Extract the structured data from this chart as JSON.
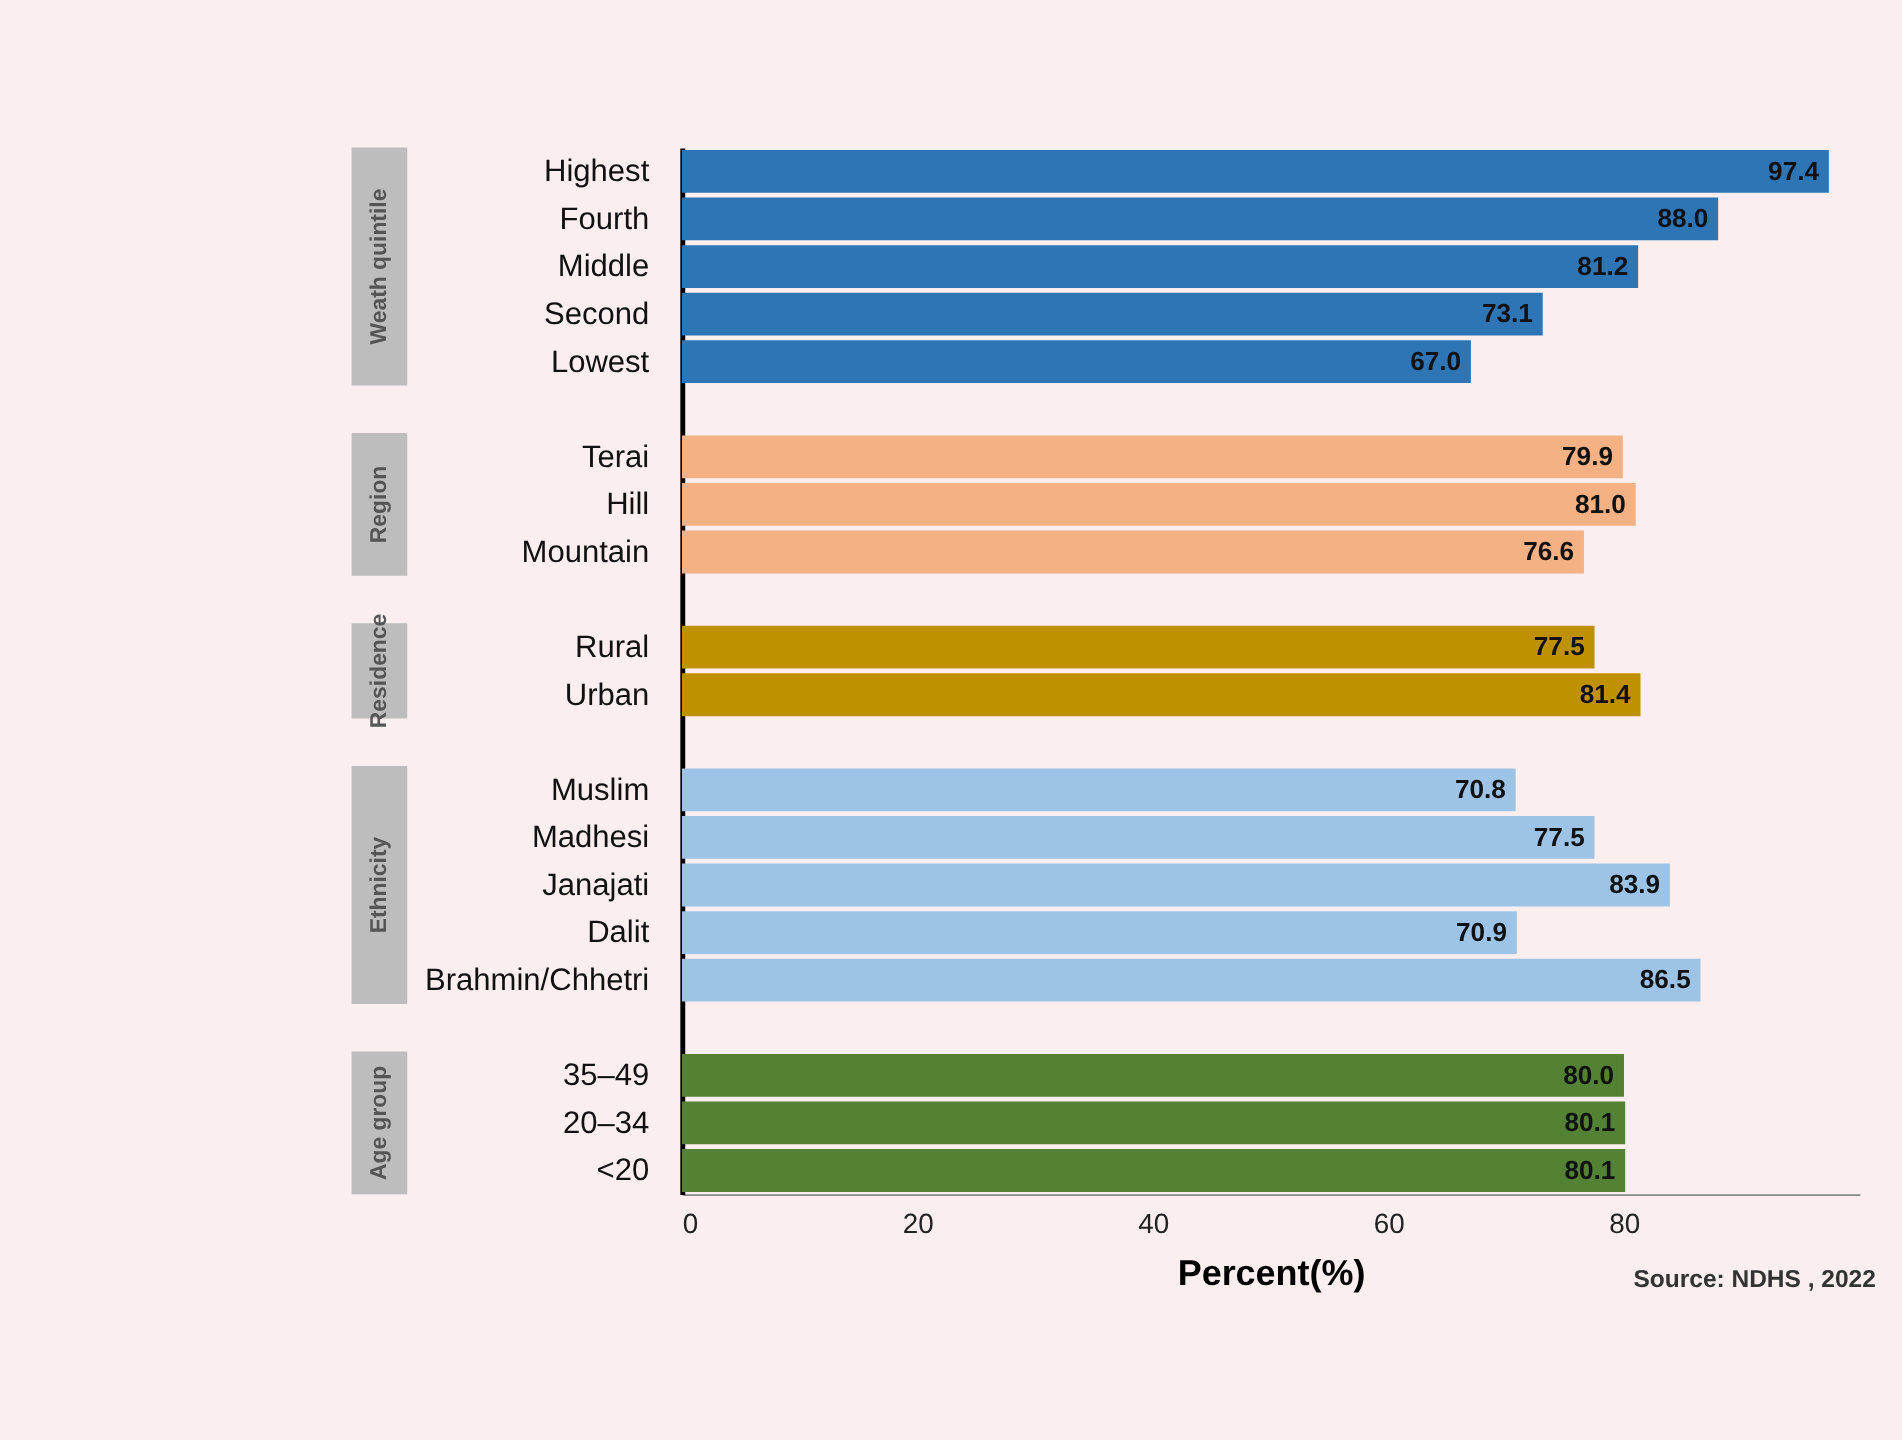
{
  "chart_data": {
    "type": "bar",
    "orientation": "horizontal",
    "xlabel": "Percent(%)",
    "categories": [
      "Highest",
      "Fourth",
      "Middle",
      "Second",
      "Lowest",
      null,
      "Terai",
      "Hill",
      "Mountain",
      null,
      "Rural",
      "Urban",
      null,
      "Muslim",
      "Madhesi",
      "Janajati",
      "Dalit",
      "Brahmin/Chhetri",
      null,
      "35–49",
      "20–34",
      "<20"
    ],
    "values": [
      97.4,
      88.0,
      81.2,
      73.1,
      67.0,
      null,
      79.9,
      81.0,
      76.6,
      null,
      77.5,
      81.4,
      null,
      70.8,
      77.5,
      83.9,
      70.9,
      86.5,
      null,
      80.0,
      80.1,
      80.1
    ],
    "colors": [
      "#2e75b6",
      "#2e75b6",
      "#2e75b6",
      "#2e75b6",
      "#2e75b6",
      null,
      "#f4b183",
      "#f4b183",
      "#f4b183",
      null,
      "#bf9000",
      "#bf9000",
      null,
      "#9dc3e6",
      "#9dc3e6",
      "#9dc3e6",
      "#9dc3e6",
      "#9dc3e6",
      null,
      "#548235",
      "#548235",
      "#548235"
    ],
    "value_labels": [
      "97.4",
      "88.0",
      "81.2",
      "73.1",
      "67.0",
      null,
      "79.9",
      "81.0",
      "76.6",
      null,
      "77.5",
      "81.4",
      null,
      "70.8",
      "77.5",
      "83.9",
      "70.9",
      "86.5",
      null,
      "80.0",
      "80.1",
      "80.1"
    ],
    "xlim": [
      0,
      100
    ],
    "xticks": [
      0,
      20,
      40,
      60,
      80
    ],
    "grid": false,
    "annotations": [
      "Weath quintile",
      "Region",
      "Residence",
      "Ethnicity",
      "Age group",
      "Source: NDHS , 2022"
    ]
  }
}
